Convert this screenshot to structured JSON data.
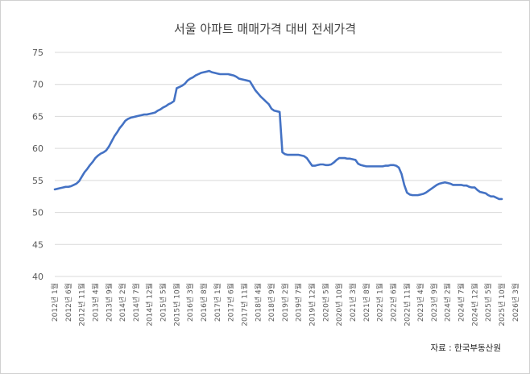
{
  "chart_data": {
    "type": "line",
    "title": "서울 아파트 매매가격 대비 전세가격",
    "source": "자료 : 한국부동산원",
    "xlabel": "",
    "ylabel": "",
    "ylim": [
      40,
      75
    ],
    "y_ticks": [
      40,
      45,
      50,
      55,
      60,
      65,
      70,
      75
    ],
    "grid": true,
    "line_color": "#4472C4",
    "x_tick_labels": [
      "2012년 1월",
      "2012년 6월",
      "2012년 11월",
      "2013년 4월",
      "2013년 9월",
      "2014년 2월",
      "2014년 7월",
      "2014년 12월",
      "2015년 5월",
      "2015년 10월",
      "2016년 3월",
      "2016년 8월",
      "2017년 1월",
      "2017년 6월",
      "2017년 11월",
      "2018년 4월",
      "2018년 9월",
      "2019년 2월",
      "2019년 7월",
      "2019년 12월",
      "2020년 5월",
      "2020년 10월",
      "2021년 3월",
      "2021년 8월",
      "2022년 1월",
      "2022년 6월",
      "2022년 11월",
      "2023년 4월",
      "2023년 9월",
      "2024년 2월",
      "2024년 7월",
      "2024년 12월",
      "2025년 5월",
      "2025년 10월",
      "2026년 3월"
    ],
    "series": [
      {
        "values": [
          53.6,
          53.7,
          53.8,
          53.9,
          54.0,
          54.0,
          54.1,
          54.3,
          54.5,
          54.9,
          55.6,
          56.3,
          56.8,
          57.4,
          57.9,
          58.5,
          58.9,
          59.2,
          59.4,
          59.7,
          60.3,
          61.1,
          61.9,
          62.5,
          63.2,
          63.7,
          64.3,
          64.6,
          64.8,
          64.9,
          65.0,
          65.1,
          65.2,
          65.3,
          65.3,
          65.4,
          65.5,
          65.6,
          65.9,
          66.1,
          66.4,
          66.6,
          66.9,
          67.1,
          67.4,
          69.4,
          69.6,
          69.8,
          70.1,
          70.6,
          70.9,
          71.1,
          71.4,
          71.6,
          71.8,
          71.9,
          72.0,
          72.1,
          71.9,
          71.8,
          71.7,
          71.6,
          71.6,
          71.6,
          71.6,
          71.5,
          71.4,
          71.2,
          70.9,
          70.8,
          70.7,
          70.6,
          70.5,
          69.8,
          69.1,
          68.6,
          68.1,
          67.7,
          67.3,
          66.9,
          66.2,
          65.9,
          65.8,
          65.7,
          59.4,
          59.1,
          59.0,
          59.0,
          59.0,
          59.0,
          59.0,
          58.9,
          58.8,
          58.5,
          57.9,
          57.3,
          57.3,
          57.4,
          57.5,
          57.5,
          57.4,
          57.4,
          57.5,
          57.8,
          58.2,
          58.5,
          58.5,
          58.5,
          58.4,
          58.4,
          58.3,
          58.2,
          57.6,
          57.4,
          57.3,
          57.2,
          57.2,
          57.2,
          57.2,
          57.2,
          57.2,
          57.2,
          57.3,
          57.3,
          57.4,
          57.4,
          57.3,
          57.0,
          56.0,
          54.3,
          53.1,
          52.8,
          52.7,
          52.7,
          52.7,
          52.8,
          52.9,
          53.1,
          53.4,
          53.7,
          54.0,
          54.3,
          54.5,
          54.6,
          54.7,
          54.6,
          54.5,
          54.3,
          54.3,
          54.3,
          54.3,
          54.2,
          54.2,
          54.0,
          53.9,
          53.9,
          53.5,
          53.2,
          53.1,
          53.0,
          52.7,
          52.5,
          52.5,
          52.3,
          52.1,
          52.1
        ]
      }
    ]
  }
}
